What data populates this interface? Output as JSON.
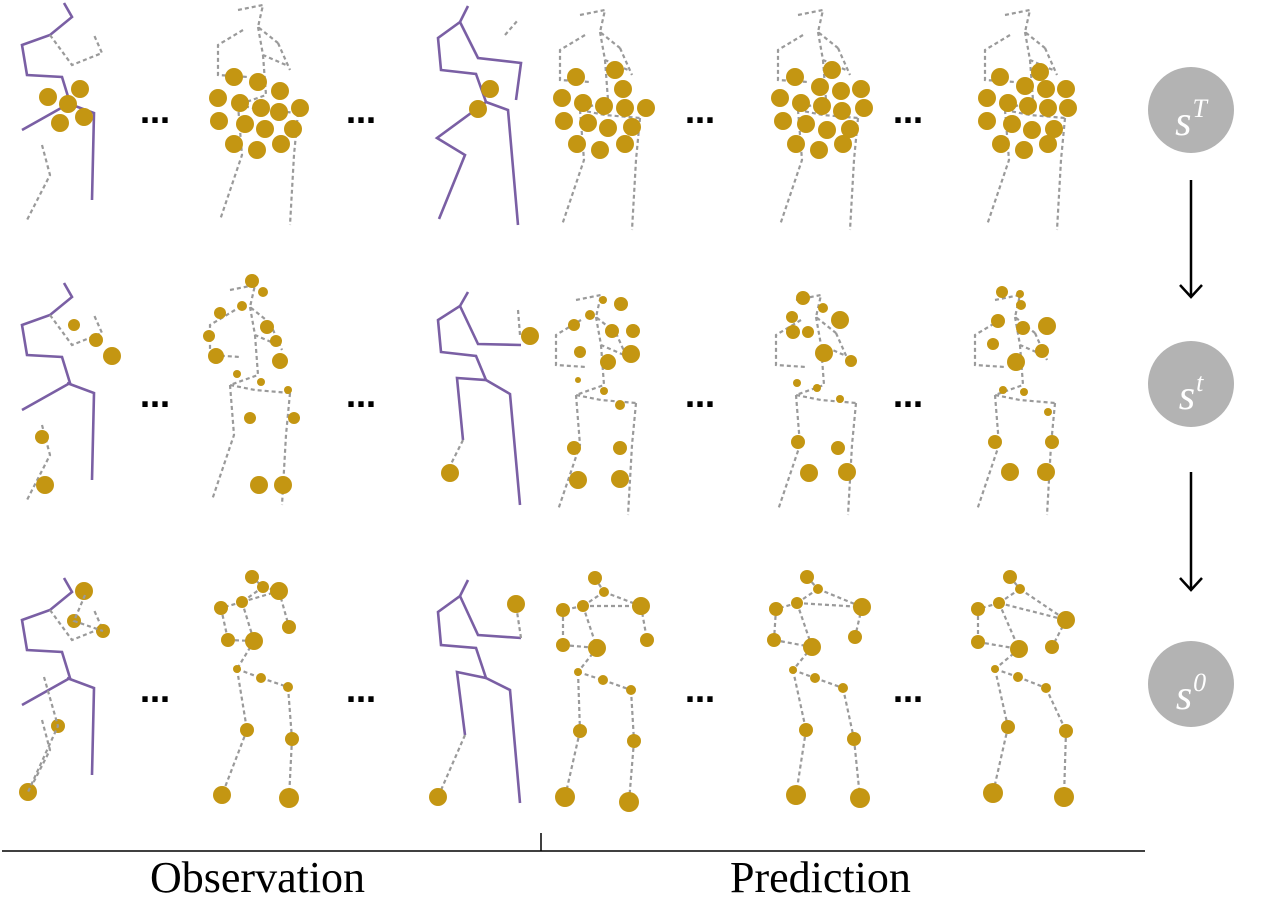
{
  "steps": [
    {
      "base": "s",
      "sup": "T"
    },
    {
      "base": "s",
      "sup": "t"
    },
    {
      "base": "s",
      "sup": "0"
    }
  ],
  "labels": {
    "observation": "Observation",
    "prediction": "Prediction"
  },
  "ellipsis": "…",
  "colors": {
    "observed_pose": "#7a5fa4",
    "joint": "#c49612",
    "skeleton_dashed": "#9a9a9a",
    "step_node": "#b3b3b3"
  },
  "icons": {
    "arrow": "down-arrow-icon"
  }
}
